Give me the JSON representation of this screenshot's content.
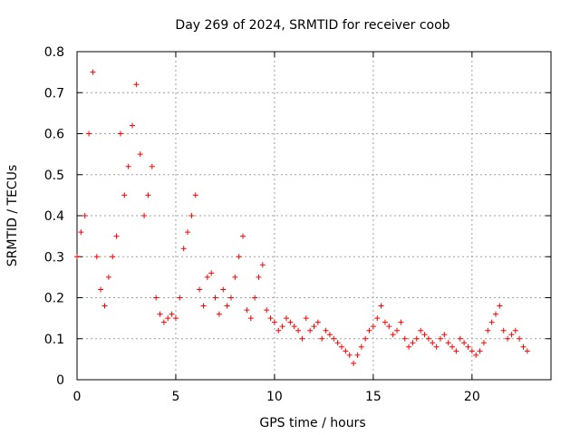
{
  "chart_data": {
    "type": "scatter",
    "title": "Day 269 of 2024, SRMTID for receiver coob",
    "xlabel": "GPS time / hours",
    "ylabel": "SRMTID / TECUs",
    "xlim": [
      0,
      24
    ],
    "ylim": [
      0,
      0.8
    ],
    "xticks": [
      0,
      5,
      10,
      15,
      20
    ],
    "xtick_labels": [
      "0",
      "5",
      "10",
      "15",
      "20"
    ],
    "yticks": [
      0,
      0.1,
      0.2,
      0.3,
      0.4,
      0.5,
      0.6,
      0.7,
      0.8
    ],
    "ytick_labels": [
      "0",
      "0.1",
      "0.2",
      "0.3",
      "0.4",
      "0.5",
      "0.6",
      "0.7",
      "0.8"
    ],
    "grid": true,
    "marker": "+",
    "color": "#ff0000",
    "series": [
      {
        "name": "coob",
        "x": [
          0.0,
          0.2,
          0.4,
          0.6,
          0.8,
          1.0,
          1.2,
          1.4,
          1.6,
          1.8,
          2.0,
          2.2,
          2.4,
          2.6,
          2.8,
          3.0,
          3.2,
          3.4,
          3.6,
          3.8,
          4.0,
          4.2,
          4.4,
          4.6,
          4.8,
          5.0,
          5.2,
          5.4,
          5.6,
          5.8,
          6.0,
          6.2,
          6.4,
          6.6,
          6.8,
          7.0,
          7.2,
          7.4,
          7.6,
          7.8,
          8.0,
          8.2,
          8.4,
          8.6,
          8.8,
          9.0,
          9.2,
          9.4,
          9.6,
          9.8,
          10.0,
          10.2,
          10.4,
          10.6,
          10.8,
          11.0,
          11.2,
          11.4,
          11.6,
          11.8,
          12.0,
          12.2,
          12.4,
          12.6,
          12.8,
          13.0,
          13.2,
          13.4,
          13.6,
          13.8,
          14.0,
          14.2,
          14.4,
          14.6,
          14.8,
          15.0,
          15.2,
          15.4,
          15.6,
          15.8,
          16.0,
          16.2,
          16.4,
          16.6,
          16.8,
          17.0,
          17.2,
          17.4,
          17.6,
          17.8,
          18.0,
          18.2,
          18.4,
          18.6,
          18.8,
          19.0,
          19.2,
          19.4,
          19.6,
          19.8,
          20.0,
          20.2,
          20.4,
          20.6,
          20.8,
          21.0,
          21.2,
          21.4,
          21.6,
          21.8,
          22.0,
          22.2,
          22.4,
          22.6,
          22.8
        ],
        "y": [
          0.3,
          0.36,
          0.4,
          0.6,
          0.75,
          0.3,
          0.22,
          0.18,
          0.25,
          0.3,
          0.35,
          0.6,
          0.45,
          0.52,
          0.62,
          0.72,
          0.55,
          0.4,
          0.45,
          0.52,
          0.2,
          0.16,
          0.14,
          0.15,
          0.16,
          0.15,
          0.2,
          0.32,
          0.36,
          0.4,
          0.45,
          0.22,
          0.18,
          0.25,
          0.26,
          0.2,
          0.16,
          0.22,
          0.18,
          0.2,
          0.25,
          0.3,
          0.35,
          0.17,
          0.15,
          0.2,
          0.25,
          0.28,
          0.17,
          0.15,
          0.14,
          0.12,
          0.13,
          0.15,
          0.14,
          0.13,
          0.12,
          0.1,
          0.15,
          0.12,
          0.13,
          0.14,
          0.1,
          0.12,
          0.11,
          0.1,
          0.09,
          0.08,
          0.07,
          0.06,
          0.04,
          0.06,
          0.08,
          0.1,
          0.12,
          0.13,
          0.15,
          0.18,
          0.14,
          0.13,
          0.11,
          0.12,
          0.14,
          0.1,
          0.08,
          0.09,
          0.1,
          0.12,
          0.11,
          0.1,
          0.09,
          0.08,
          0.1,
          0.11,
          0.09,
          0.08,
          0.07,
          0.1,
          0.09,
          0.08,
          0.07,
          0.06,
          0.07,
          0.09,
          0.12,
          0.14,
          0.16,
          0.18,
          0.12,
          0.1,
          0.11,
          0.12,
          0.1,
          0.08,
          0.07
        ]
      }
    ]
  }
}
